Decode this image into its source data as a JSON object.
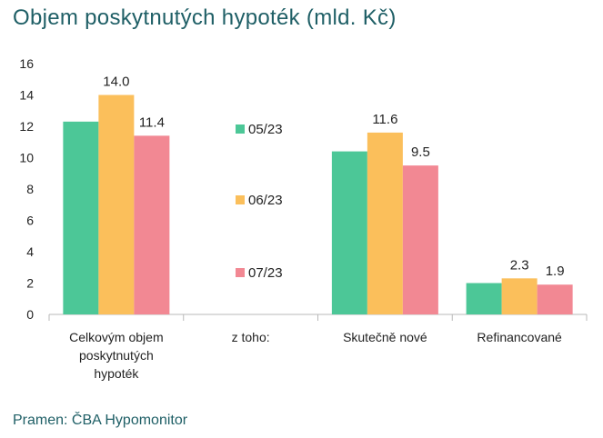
{
  "title": "Objem poskytnutých hypoték (mld. Kč)",
  "source": "Pramen: ČBA Hypomonitor",
  "colors": {
    "05/23": "#4cc797",
    "06/23": "#fbbf5b",
    "07/23": "#f28893",
    "axis": "#b8b8b8"
  },
  "chart_data": {
    "type": "bar",
    "title": "Objem poskytnutých hypoték (mld. Kč)",
    "categories": [
      [
        "Celkovým objem",
        "poskytnutých",
        "hypoték"
      ],
      [
        "z toho:"
      ],
      [
        "Skutečně nové"
      ],
      [
        "Refinancované"
      ]
    ],
    "series": [
      {
        "name": "05/23",
        "values": [
          12.3,
          null,
          10.4,
          2.0
        ],
        "labels": [
          "",
          "",
          "",
          ""
        ]
      },
      {
        "name": "06/23",
        "values": [
          14.0,
          null,
          11.6,
          2.3
        ],
        "labels": [
          "14.0",
          "",
          "11.6",
          "2.3"
        ]
      },
      {
        "name": "07/23",
        "values": [
          11.4,
          null,
          9.5,
          1.9
        ],
        "labels": [
          "11.4",
          "",
          "9.5",
          "1.9"
        ]
      }
    ],
    "ylim": [
      0,
      16
    ],
    "yticks": [
      0,
      2,
      4,
      6,
      8,
      10,
      12,
      14,
      16
    ],
    "grid": false,
    "legend": "inside the second category, stacked vertically"
  }
}
